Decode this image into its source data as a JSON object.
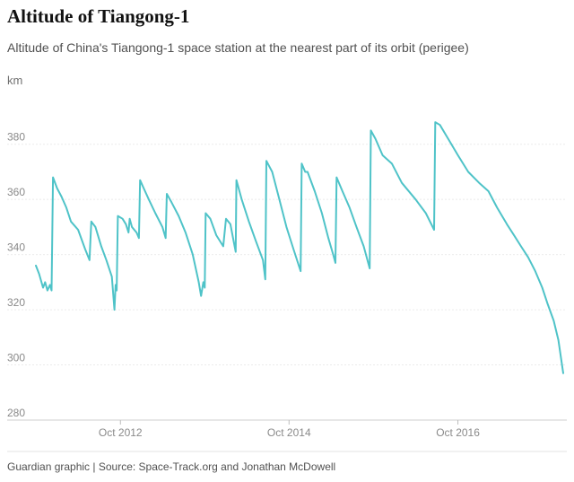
{
  "title": "Altitude of Tiangong-1",
  "subtitle": "Altitude of China's Tiangong-1 space station at the nearest part of its orbit (perigee)",
  "source": "Guardian graphic | Source: Space-Track.org and Jonathan McDowell",
  "chart_data": {
    "type": "line",
    "title": "Altitude of Tiangong-1",
    "subtitle": "Altitude of China's Tiangong-1 space station at the nearest part of its orbit (perigee)",
    "ylabel": "km",
    "xlabel": "",
    "ylim": [
      280,
      390
    ],
    "xlim": [
      "2011-10-01",
      "2017-12-31"
    ],
    "yticks": [
      280,
      300,
      320,
      340,
      360,
      380
    ],
    "xticks": [
      {
        "date": "2012-10-01",
        "label": "Oct 2012"
      },
      {
        "date": "2014-10-01",
        "label": "Oct 2014"
      },
      {
        "date": "2016-10-01",
        "label": "Oct 2016"
      }
    ],
    "grid": true,
    "series": [
      {
        "color": "#4fc3c8",
        "points": [
          [
            "2011-10-01",
            336
          ],
          [
            "2011-10-15",
            333
          ],
          [
            "2011-11-01",
            328
          ],
          [
            "2011-11-10",
            330
          ],
          [
            "2011-11-20",
            327
          ],
          [
            "2011-12-01",
            329
          ],
          [
            "2011-12-08",
            327
          ],
          [
            "2011-12-14",
            368
          ],
          [
            "2012-01-01",
            364
          ],
          [
            "2012-01-20",
            361
          ],
          [
            "2012-02-10",
            357
          ],
          [
            "2012-03-01",
            352
          ],
          [
            "2012-04-01",
            349
          ],
          [
            "2012-05-01",
            342
          ],
          [
            "2012-05-20",
            338
          ],
          [
            "2012-05-28",
            352
          ],
          [
            "2012-06-15",
            350
          ],
          [
            "2012-07-10",
            343
          ],
          [
            "2012-08-01",
            338
          ],
          [
            "2012-08-25",
            332
          ],
          [
            "2012-09-05",
            320
          ],
          [
            "2012-09-10",
            329
          ],
          [
            "2012-09-15",
            327
          ],
          [
            "2012-09-20",
            354
          ],
          [
            "2012-10-10",
            353
          ],
          [
            "2012-10-25",
            351
          ],
          [
            "2012-11-05",
            348
          ],
          [
            "2012-11-10",
            353
          ],
          [
            "2012-11-20",
            350
          ],
          [
            "2012-12-10",
            348
          ],
          [
            "2012-12-20",
            346
          ],
          [
            "2012-12-25",
            367
          ],
          [
            "2013-01-10",
            364
          ],
          [
            "2013-02-01",
            360
          ],
          [
            "2013-03-01",
            355
          ],
          [
            "2013-04-01",
            350
          ],
          [
            "2013-04-15",
            346
          ],
          [
            "2013-04-20",
            362
          ],
          [
            "2013-05-10",
            359
          ],
          [
            "2013-06-10",
            354
          ],
          [
            "2013-07-10",
            348
          ],
          [
            "2013-08-10",
            340
          ],
          [
            "2013-09-05",
            330
          ],
          [
            "2013-09-15",
            325
          ],
          [
            "2013-09-25",
            330
          ],
          [
            "2013-10-01",
            328
          ],
          [
            "2013-10-05",
            355
          ],
          [
            "2013-10-25",
            353
          ],
          [
            "2013-11-20",
            347
          ],
          [
            "2013-12-20",
            343
          ],
          [
            "2014-01-01",
            353
          ],
          [
            "2014-01-20",
            351
          ],
          [
            "2014-02-05",
            344
          ],
          [
            "2014-02-12",
            341
          ],
          [
            "2014-02-15",
            367
          ],
          [
            "2014-03-10",
            360
          ],
          [
            "2014-04-10",
            352
          ],
          [
            "2014-05-10",
            345
          ],
          [
            "2014-06-10",
            338
          ],
          [
            "2014-06-20",
            331
          ],
          [
            "2014-06-25",
            374
          ],
          [
            "2014-07-20",
            370
          ],
          [
            "2014-08-20",
            360
          ],
          [
            "2014-09-20",
            350
          ],
          [
            "2014-10-20",
            342
          ],
          [
            "2014-11-20",
            334
          ],
          [
            "2014-11-25",
            373
          ],
          [
            "2014-12-10",
            370
          ],
          [
            "2014-12-20",
            370
          ],
          [
            "2015-01-20",
            363
          ],
          [
            "2015-02-20",
            355
          ],
          [
            "2015-03-20",
            346
          ],
          [
            "2015-04-10",
            340
          ],
          [
            "2015-04-20",
            337
          ],
          [
            "2015-04-25",
            368
          ],
          [
            "2015-05-20",
            363
          ],
          [
            "2015-06-20",
            357
          ],
          [
            "2015-07-20",
            350
          ],
          [
            "2015-08-20",
            343
          ],
          [
            "2015-09-15",
            335
          ],
          [
            "2015-09-20",
            385
          ],
          [
            "2015-10-10",
            382
          ],
          [
            "2015-11-10",
            376
          ],
          [
            "2015-12-20",
            373
          ],
          [
            "2016-02-01",
            366
          ],
          [
            "2016-04-01",
            360
          ],
          [
            "2016-05-15",
            355
          ],
          [
            "2016-06-20",
            349
          ],
          [
            "2016-06-25",
            388
          ],
          [
            "2016-07-15",
            387
          ],
          [
            "2016-08-20",
            382
          ],
          [
            "2016-10-01",
            376
          ],
          [
            "2016-11-15",
            370
          ],
          [
            "2017-01-01",
            366
          ],
          [
            "2017-02-10",
            363
          ],
          [
            "2017-03-20",
            357
          ],
          [
            "2017-05-01",
            351
          ],
          [
            "2017-06-01",
            347
          ],
          [
            "2017-07-01",
            343
          ],
          [
            "2017-08-01",
            339
          ],
          [
            "2017-09-01",
            334
          ],
          [
            "2017-10-01",
            328
          ],
          [
            "2017-10-25",
            322
          ],
          [
            "2017-11-20",
            316
          ],
          [
            "2017-12-10",
            309
          ],
          [
            "2017-12-31",
            297
          ]
        ]
      }
    ]
  }
}
